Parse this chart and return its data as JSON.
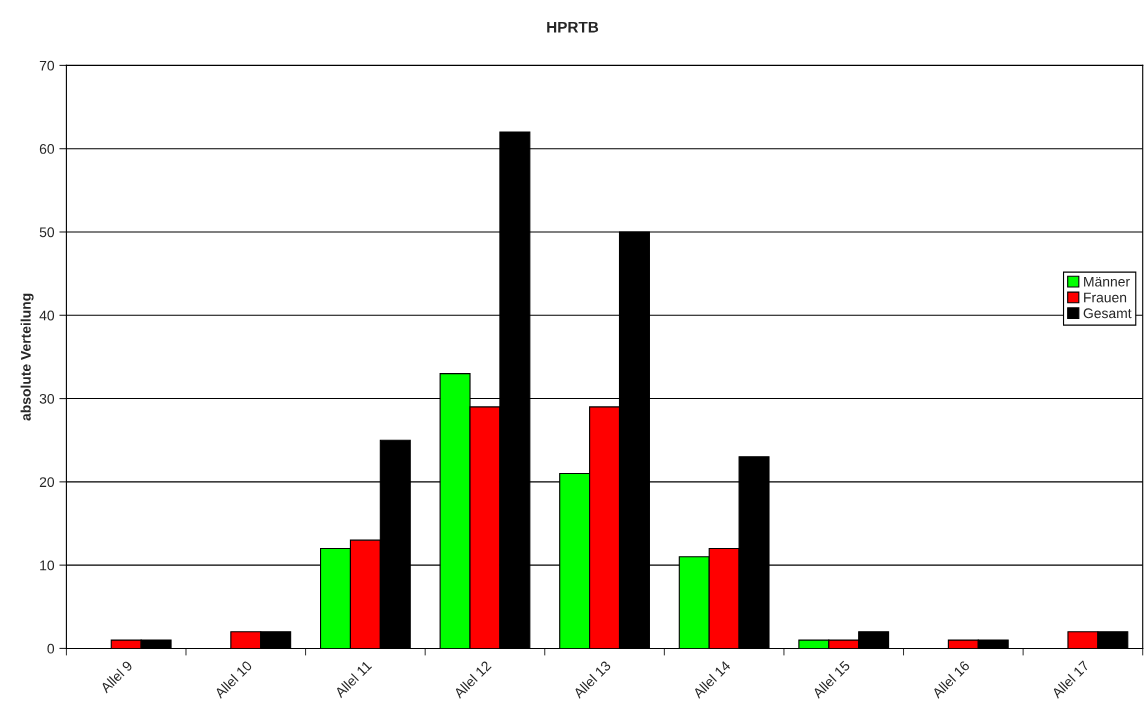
{
  "chart_data": {
    "type": "bar",
    "title": "HPRTB",
    "ylabel": "absolute Verteilung",
    "categories": [
      "Allel 9",
      "Allel 10",
      "Allel 11",
      "Allel 12",
      "Allel 13",
      "Allel 14",
      "Allel 15",
      "Allel 16",
      "Allel 17"
    ],
    "series": [
      {
        "name": "Männer",
        "color": "#00ff00",
        "values": [
          0,
          0,
          12,
          33,
          21,
          11,
          1,
          0,
          0
        ]
      },
      {
        "name": "Frauen",
        "color": "#ff0000",
        "values": [
          1,
          2,
          13,
          29,
          29,
          12,
          1,
          1,
          2
        ]
      },
      {
        "name": "Gesamt",
        "color": "#000000",
        "values": [
          1,
          2,
          25,
          62,
          50,
          23,
          2,
          1,
          2
        ]
      }
    ],
    "ylim": [
      0,
      70
    ],
    "yticks": [
      0,
      10,
      20,
      30,
      40,
      50,
      60,
      70
    ],
    "grid": "y",
    "legend": "right"
  }
}
